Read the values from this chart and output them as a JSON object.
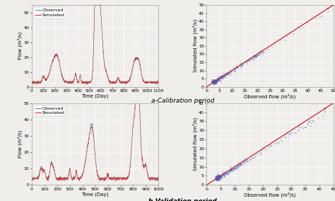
{
  "bg_color": "#f0eeeb",
  "plot_bg": "#f0eeeb",
  "observed_color": "#6688aa",
  "simulated_color": "#cc3333",
  "scatter_dot_color": "#4466cc",
  "line_color": "#cc2222",
  "calib_label": "a-Calibration period",
  "valid_label": "b-Validation period",
  "xlabel_time": "Time (Day)",
  "ylabel_flow": "Flow (m³/s)",
  "xlabel_obs": "Observed flow (m³/s)",
  "ylabel_sim": "Simulated flow (m³/s)",
  "legend_observed": "Observed",
  "legend_simulated": "Simulated",
  "tick_fs": 4.5,
  "label_fs": 5.0,
  "legend_fs": 4.5,
  "period_fs": 6.5
}
